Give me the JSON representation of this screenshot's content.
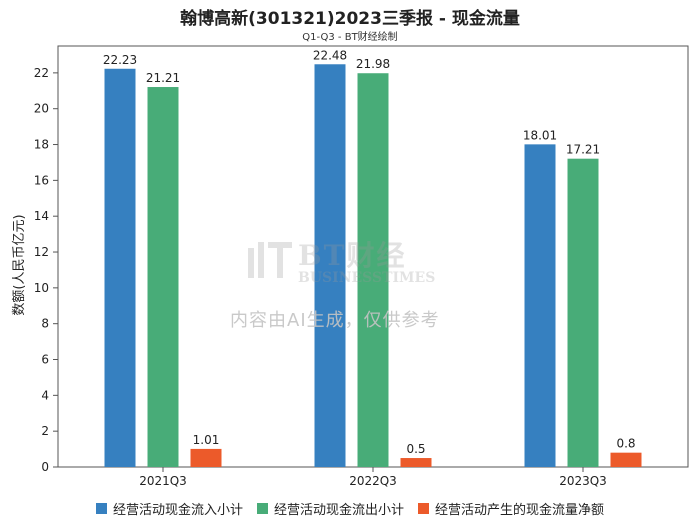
{
  "chart_data": {
    "type": "bar",
    "title": "翰博高新(301321)2023三季报 - 现金流量",
    "subtitle": "Q1-Q3 - BT财经绘制",
    "ylabel": "数额(人民币亿元)",
    "xlabel": "",
    "ylim": [
      0,
      23.5
    ],
    "yticks": [
      0,
      2,
      4,
      6,
      8,
      10,
      12,
      14,
      16,
      18,
      20,
      22
    ],
    "categories": [
      "2021Q3",
      "2022Q3",
      "2023Q3"
    ],
    "series": [
      {
        "name": "经营活动现金流入小计",
        "color": "#3680c0",
        "values": [
          22.23,
          22.48,
          18.01
        ],
        "labels": [
          "22.23",
          "22.48",
          "18.01"
        ]
      },
      {
        "name": "经营活动现金流出小计",
        "color": "#48ac78",
        "values": [
          21.21,
          21.98,
          17.21
        ],
        "labels": [
          "21.21",
          "21.98",
          "17.21"
        ]
      },
      {
        "name": "经营活动产生的现金流量净额",
        "color": "#ec5a2a",
        "values": [
          1.01,
          0.5,
          0.8
        ],
        "labels": [
          "1.01",
          "0.5",
          "0.8"
        ]
      }
    ],
    "grid": false,
    "legend": "bottom"
  },
  "watermark": {
    "brand": "BT财经",
    "brand_en": "BUSINESSTIMES",
    "note": "内容由AI生成，仅供参考"
  }
}
